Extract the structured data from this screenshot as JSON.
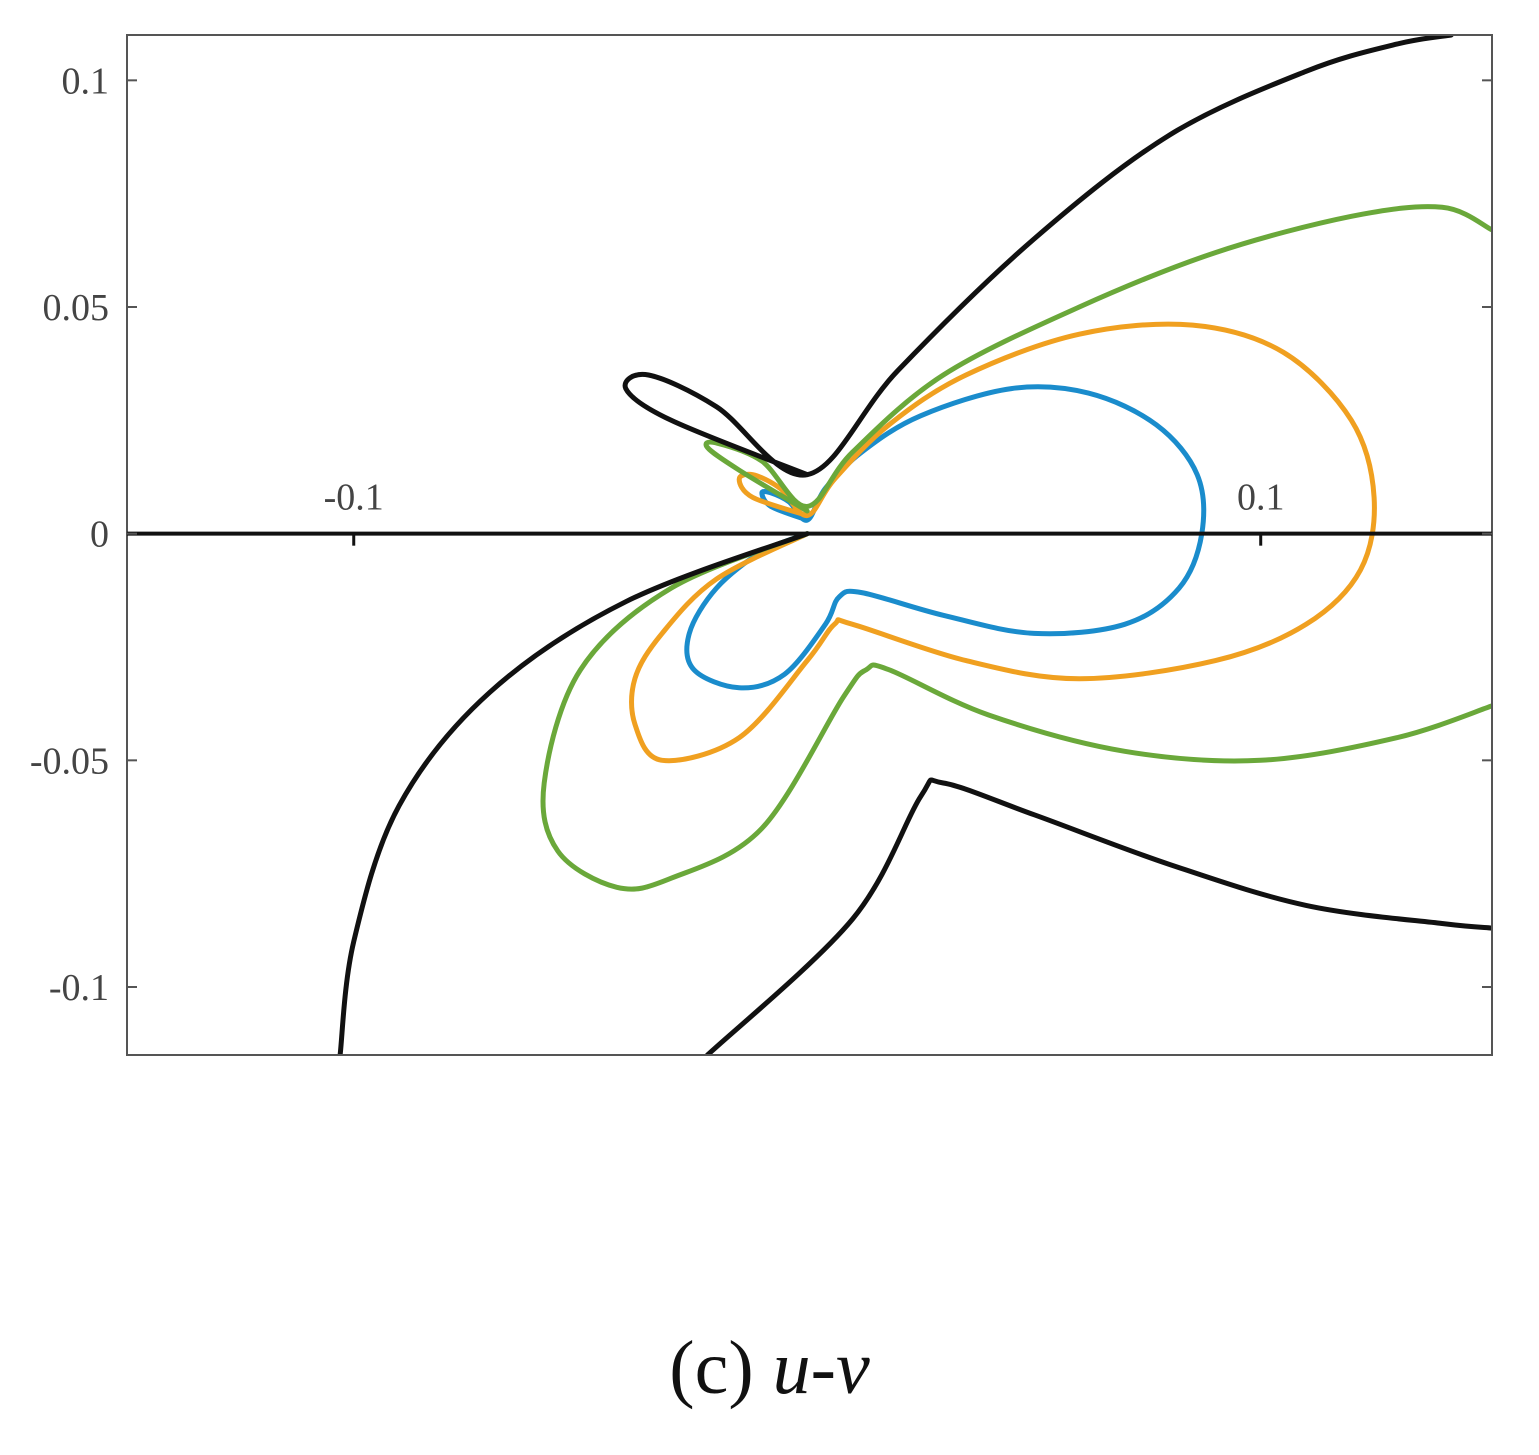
{
  "chart_data": {
    "type": "line",
    "title": "",
    "xlabel": "",
    "ylabel": "",
    "xlim": [
      -0.15,
      0.151
    ],
    "ylim": [
      -0.115,
      0.11
    ],
    "x_ticks": [
      {
        "value": -0.1,
        "label": "-0.1"
      },
      {
        "value": 0.1,
        "label": "0.1"
      }
    ],
    "y_ticks": [
      {
        "value": 0.1,
        "label": "0.1"
      },
      {
        "value": 0.05,
        "label": "0.05"
      },
      {
        "value": 0,
        "label": "0"
      },
      {
        "value": -0.05,
        "label": "-0.05"
      },
      {
        "value": -0.1,
        "label": "-0.1"
      }
    ],
    "grid": false,
    "legend": "none",
    "series": [
      {
        "color": "#1a8ccc",
        "points": [
          [
            0,
            0.003
          ],
          [
            -0.008,
            0.006
          ],
          [
            -0.01,
            0.009
          ],
          [
            -0.008,
            0.009
          ],
          [
            -0.004,
            0.007
          ],
          [
            0,
            0.003
          ],
          [
            0.004,
            0.01
          ],
          [
            0.012,
            0.018
          ],
          [
            0.025,
            0.026
          ],
          [
            0.045,
            0.032
          ],
          [
            0.062,
            0.031
          ],
          [
            0.077,
            0.024
          ],
          [
            0.086,
            0.013
          ],
          [
            0.087,
            0.0
          ],
          [
            0.082,
            -0.012
          ],
          [
            0.07,
            -0.02
          ],
          [
            0.05,
            -0.022
          ],
          [
            0.03,
            -0.018
          ],
          [
            0.012,
            -0.013
          ],
          [
            0.007,
            -0.014
          ],
          [
            0.004,
            -0.02
          ],
          [
            -0.005,
            -0.031
          ],
          [
            -0.015,
            -0.034
          ],
          [
            -0.025,
            -0.03
          ],
          [
            -0.026,
            -0.022
          ],
          [
            -0.02,
            -0.012
          ],
          [
            -0.01,
            -0.004
          ],
          [
            0,
            0
          ]
        ]
      },
      {
        "color": "#f0a020",
        "points": [
          [
            0,
            0.004
          ],
          [
            -0.012,
            0.008
          ],
          [
            -0.015,
            0.012
          ],
          [
            -0.012,
            0.013
          ],
          [
            -0.006,
            0.01
          ],
          [
            0,
            0.004
          ],
          [
            0.006,
            0.012
          ],
          [
            0.018,
            0.024
          ],
          [
            0.035,
            0.035
          ],
          [
            0.06,
            0.044
          ],
          [
            0.085,
            0.046
          ],
          [
            0.105,
            0.04
          ],
          [
            0.12,
            0.025
          ],
          [
            0.125,
            0.008
          ],
          [
            0.122,
            -0.008
          ],
          [
            0.11,
            -0.02
          ],
          [
            0.09,
            -0.028
          ],
          [
            0.06,
            -0.032
          ],
          [
            0.035,
            -0.028
          ],
          [
            0.01,
            -0.02
          ],
          [
            0.006,
            -0.02
          ],
          [
            0.0,
            -0.028
          ],
          [
            -0.015,
            -0.045
          ],
          [
            -0.032,
            -0.05
          ],
          [
            -0.038,
            -0.042
          ],
          [
            -0.038,
            -0.032
          ],
          [
            -0.032,
            -0.022
          ],
          [
            -0.02,
            -0.01
          ],
          [
            0,
            0
          ]
        ]
      },
      {
        "color": "#6aa83a",
        "points": [
          [
            0,
            0.005
          ],
          [
            -0.015,
            0.014
          ],
          [
            -0.022,
            0.019
          ],
          [
            -0.02,
            0.02
          ],
          [
            -0.01,
            0.016
          ],
          [
            0,
            0.006
          ],
          [
            0.01,
            0.018
          ],
          [
            0.03,
            0.035
          ],
          [
            0.06,
            0.05
          ],
          [
            0.09,
            0.062
          ],
          [
            0.12,
            0.07
          ],
          [
            0.14,
            0.072
          ],
          [
            0.151,
            0.067
          ],
          null,
          [
            0.151,
            -0.038
          ],
          [
            0.13,
            -0.045
          ],
          [
            0.1,
            -0.05
          ],
          [
            0.07,
            -0.048
          ],
          [
            0.04,
            -0.04
          ],
          [
            0.018,
            -0.03
          ],
          [
            0.013,
            -0.03
          ],
          [
            0.008,
            -0.036
          ],
          [
            -0.01,
            -0.065
          ],
          [
            -0.03,
            -0.076
          ],
          [
            -0.042,
            -0.078
          ],
          [
            -0.055,
            -0.07
          ],
          [
            -0.058,
            -0.055
          ],
          [
            -0.05,
            -0.03
          ],
          [
            -0.03,
            -0.012
          ],
          [
            0,
            0
          ]
        ]
      },
      {
        "color": "#111111",
        "points": [
          [
            0,
            0.013
          ],
          [
            -0.03,
            0.025
          ],
          [
            -0.04,
            0.032
          ],
          [
            -0.035,
            0.035
          ],
          [
            -0.02,
            0.028
          ],
          [
            0,
            0.013
          ],
          [
            0.02,
            0.036
          ],
          [
            0.05,
            0.065
          ],
          [
            0.08,
            0.088
          ],
          [
            0.11,
            0.102
          ],
          [
            0.13,
            0.108
          ],
          [
            0.142,
            0.11
          ],
          null,
          [
            0,
            0
          ],
          [
            -0.04,
            -0.015
          ],
          [
            -0.07,
            -0.035
          ],
          [
            -0.09,
            -0.06
          ],
          [
            -0.1,
            -0.09
          ],
          [
            -0.103,
            -0.115
          ],
          null,
          [
            -0.022,
            -0.115
          ],
          [
            0.01,
            -0.085
          ],
          [
            0.025,
            -0.058
          ],
          [
            0.03,
            -0.055
          ],
          [
            0.05,
            -0.062
          ],
          [
            0.08,
            -0.073
          ],
          [
            0.11,
            -0.082
          ],
          [
            0.14,
            -0.086
          ],
          [
            0.151,
            -0.087
          ]
        ]
      }
    ]
  },
  "caption": {
    "panel": "(c)",
    "variable": "u-v"
  }
}
